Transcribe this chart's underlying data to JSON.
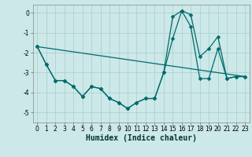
{
  "xlabel": "Humidex (Indice chaleur)",
  "bg_color": "#cce8e8",
  "line_color": "#006b6b",
  "grid_color": "#aacccc",
  "xlim": [
    -0.5,
    23.5
  ],
  "ylim": [
    -5.5,
    0.4
  ],
  "yticks": [
    0,
    -1,
    -2,
    -3,
    -4,
    -5
  ],
  "xticks": [
    0,
    1,
    2,
    3,
    4,
    5,
    6,
    7,
    8,
    9,
    10,
    11,
    12,
    13,
    14,
    15,
    16,
    17,
    18,
    19,
    20,
    21,
    22,
    23
  ],
  "line1_x": [
    0,
    1,
    2,
    3,
    4,
    5,
    6,
    7,
    8,
    9,
    10,
    11,
    12,
    13,
    14,
    15,
    16,
    17,
    18,
    19,
    20,
    21,
    22,
    23
  ],
  "line1_y": [
    -1.7,
    -2.6,
    -3.4,
    -3.4,
    -3.7,
    -4.2,
    -3.7,
    -3.8,
    -4.3,
    -4.5,
    -4.8,
    -4.5,
    -4.3,
    -4.3,
    -3.0,
    -1.3,
    0.1,
    -0.1,
    -2.2,
    -1.8,
    -1.2,
    -3.3,
    -3.2,
    -3.2
  ],
  "line2_x": [
    0,
    1,
    2,
    3,
    4,
    5,
    6,
    7,
    8,
    9,
    10,
    11,
    12,
    13,
    14,
    15,
    16,
    17,
    18,
    19,
    20,
    21,
    22,
    23
  ],
  "line2_y": [
    -1.7,
    -2.6,
    -3.4,
    -3.4,
    -3.7,
    -4.2,
    -3.7,
    -3.8,
    -4.3,
    -4.5,
    -4.8,
    -4.5,
    -4.3,
    -4.3,
    -3.0,
    -0.2,
    0.1,
    -0.7,
    -3.3,
    -3.3,
    -1.8,
    -3.3,
    -3.2,
    -3.2
  ],
  "line3_x": [
    0,
    23
  ],
  "line3_y": [
    -1.7,
    -3.2
  ],
  "marker_size": 2.5,
  "linewidth": 0.9,
  "xlabel_fontsize": 7,
  "tick_fontsize": 5.5
}
